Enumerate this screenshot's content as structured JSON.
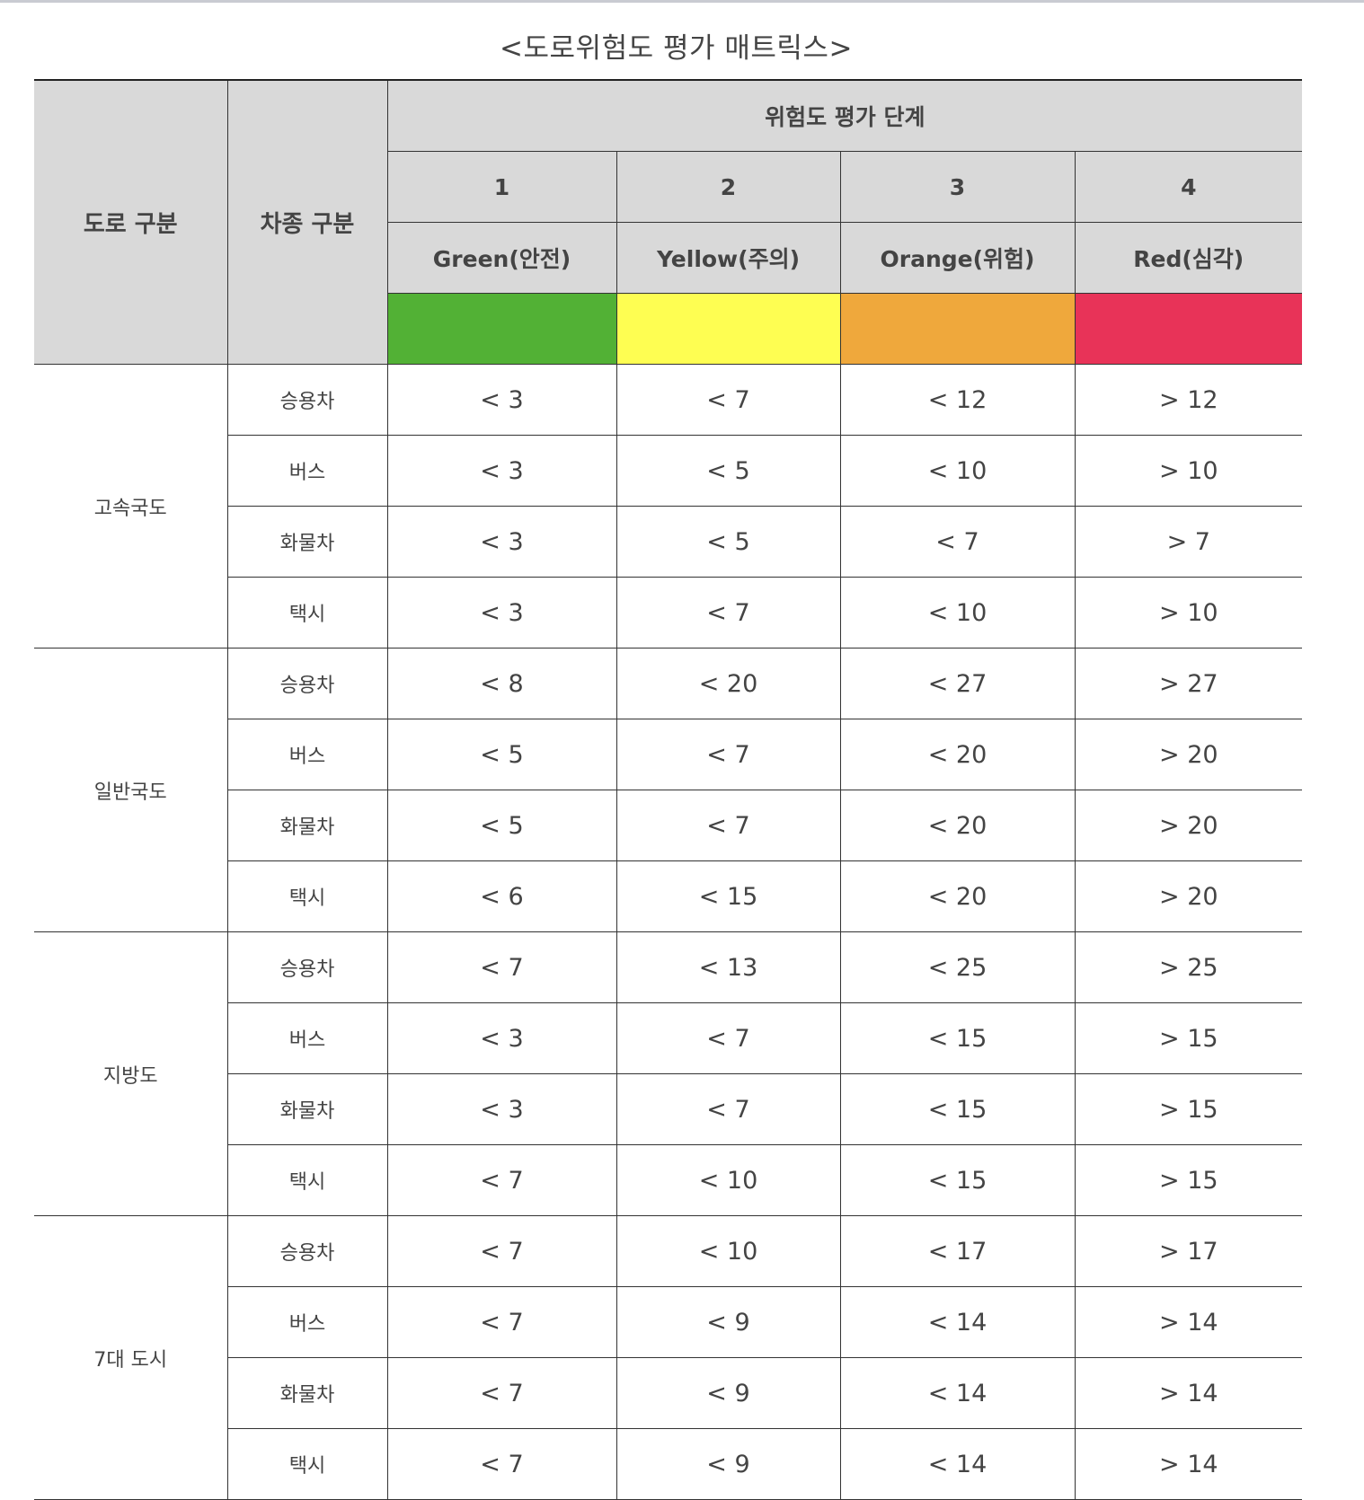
{
  "title": "<도로위험도 평가 매트릭스>",
  "header": {
    "road_col": "도로 구분",
    "vehicle_col": "차종 구분",
    "stage_group": "위험도 평가 단계",
    "levels": [
      {
        "num": "1",
        "label": "Green(안전)",
        "color": "#52b135"
      },
      {
        "num": "2",
        "label": "Yellow(주의)",
        "color": "#fefe52"
      },
      {
        "num": "3",
        "label": "Orange(위험)",
        "color": "#efa83c"
      },
      {
        "num": "4",
        "label": "Red(심각)",
        "color": "#e83358"
      }
    ]
  },
  "groups": [
    {
      "road": "고속국도",
      "rows": [
        {
          "vehicle": "승용차",
          "values": [
            "< 3",
            "< 7",
            "< 12",
            "> 12"
          ]
        },
        {
          "vehicle": "버스",
          "values": [
            "< 3",
            "< 5",
            "< 10",
            "> 10"
          ]
        },
        {
          "vehicle": "화물차",
          "values": [
            "< 3",
            "< 5",
            "< 7",
            "> 7"
          ]
        },
        {
          "vehicle": "택시",
          "values": [
            "< 3",
            "< 7",
            "< 10",
            "> 10"
          ]
        }
      ]
    },
    {
      "road": "일반국도",
      "rows": [
        {
          "vehicle": "승용차",
          "values": [
            "< 8",
            "< 20",
            "< 27",
            "> 27"
          ]
        },
        {
          "vehicle": "버스",
          "values": [
            "< 5",
            "< 7",
            "< 20",
            "> 20"
          ]
        },
        {
          "vehicle": "화물차",
          "values": [
            "< 5",
            "< 7",
            "< 20",
            "> 20"
          ]
        },
        {
          "vehicle": "택시",
          "values": [
            "< 6",
            "< 15",
            "< 20",
            "> 20"
          ]
        }
      ]
    },
    {
      "road": "지방도",
      "rows": [
        {
          "vehicle": "승용차",
          "values": [
            "< 7",
            "< 13",
            "< 25",
            "> 25"
          ]
        },
        {
          "vehicle": "버스",
          "values": [
            "< 3",
            "< 7",
            "< 15",
            "> 15"
          ]
        },
        {
          "vehicle": "화물차",
          "values": [
            "< 3",
            "< 7",
            "< 15",
            "> 15"
          ]
        },
        {
          "vehicle": "택시",
          "values": [
            "< 7",
            "< 10",
            "< 15",
            "> 15"
          ]
        }
      ]
    },
    {
      "road": "7대 도시",
      "rows": [
        {
          "vehicle": "승용차",
          "values": [
            "< 7",
            "< 10",
            "< 17",
            "> 17"
          ]
        },
        {
          "vehicle": "버스",
          "values": [
            "< 7",
            "< 9",
            "< 14",
            "> 14"
          ]
        },
        {
          "vehicle": "화물차",
          "values": [
            "< 7",
            "< 9",
            "< 14",
            "> 14"
          ]
        },
        {
          "vehicle": "택시",
          "values": [
            "< 7",
            "< 9",
            "< 14",
            "> 14"
          ]
        }
      ]
    }
  ]
}
